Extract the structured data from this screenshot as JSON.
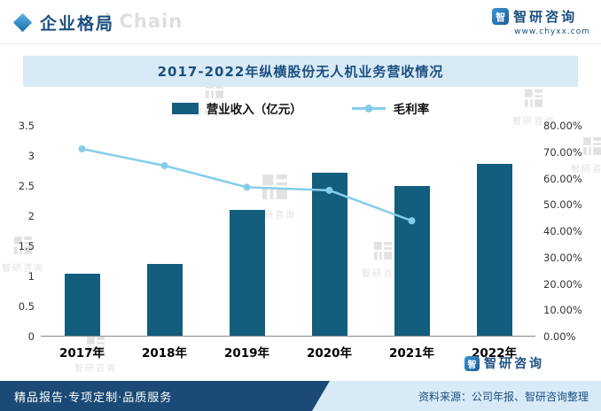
{
  "header": {
    "section_title": "企业格局",
    "watermark_text": "l Chain",
    "brand_name": "智研咨询",
    "brand_icon": "智",
    "brand_url": "www.chyxx.com"
  },
  "chart_data": {
    "type": "bar+line",
    "title": "2017-2022年纵横股份无人机业务营收情况",
    "categories": [
      "2017年",
      "2018年",
      "2019年",
      "2020年",
      "2021年",
      "2022年"
    ],
    "series": [
      {
        "name": "营业收入（亿元）",
        "type": "bar",
        "axis": "left",
        "color": "#135d7d",
        "values": [
          1.04,
          1.2,
          2.1,
          2.72,
          2.5,
          2.87
        ]
      },
      {
        "name": "毛利率",
        "type": "line",
        "axis": "right",
        "color": "#85cdec",
        "values": [
          71.2,
          64.8,
          56.6,
          55.4,
          43.8,
          null
        ]
      }
    ],
    "left_axis": {
      "min": 0,
      "max": 3.5,
      "step": 0.5,
      "ticks": [
        "3.5",
        "3",
        "2.5",
        "2",
        "1.5",
        "1",
        "0.5",
        "0"
      ]
    },
    "right_axis": {
      "min": 0,
      "max": 80,
      "step": 10,
      "ticks": [
        "80.00%",
        "70.00%",
        "60.00%",
        "50.00%",
        "40.00%",
        "30.00%",
        "20.00%",
        "10.00%",
        "0.00%"
      ]
    },
    "legend_position": "top",
    "grid": false
  },
  "footer": {
    "tagline": "精品报告·专项定制·品质服务",
    "source": "资料来源：公司年报、智研咨询整理",
    "brand_name": "智研咨询",
    "brand_icon": "智"
  },
  "watermark": {
    "text": "智研咨询"
  }
}
